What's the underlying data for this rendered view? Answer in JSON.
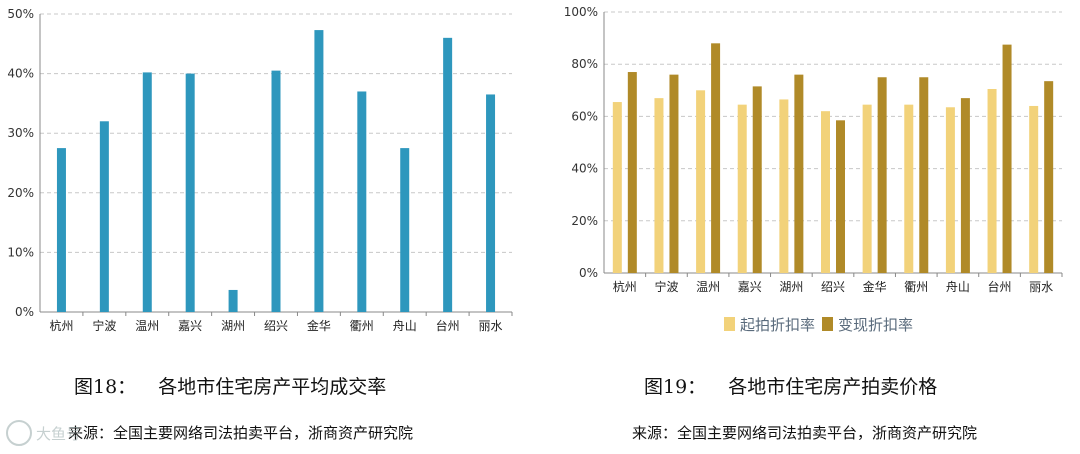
{
  "chart_data": [
    {
      "type": "bar",
      "categories": [
        "杭州",
        "宁波",
        "温州",
        "嘉兴",
        "湖州",
        "绍兴",
        "金华",
        "衢州",
        "舟山",
        "台州",
        "丽水"
      ],
      "series": [
        {
          "values": [
            27.5,
            32.0,
            40.2,
            40.0,
            3.7,
            40.5,
            47.3,
            37.0,
            27.5,
            46.0,
            36.5
          ]
        }
      ],
      "yticks": [
        "0%",
        "10%",
        "20%",
        "30%",
        "40%",
        "50%"
      ],
      "ylim": [
        0,
        50
      ],
      "grid": true,
      "colors": {
        "bar": "#2e97bd",
        "grid": "#c8c8c8"
      }
    },
    {
      "type": "bar",
      "categories": [
        "杭州",
        "宁波",
        "温州",
        "嘉兴",
        "湖州",
        "绍兴",
        "金华",
        "衢州",
        "舟山",
        "台州",
        "丽水"
      ],
      "series": [
        {
          "name": "起拍折扣率",
          "values": [
            65.5,
            67.0,
            70.0,
            64.5,
            66.5,
            62.0,
            64.5,
            64.5,
            63.5,
            70.5,
            64.0
          ]
        },
        {
          "name": "变现折扣率",
          "values": [
            77.0,
            76.0,
            88.0,
            71.5,
            76.0,
            58.5,
            75.0,
            75.0,
            67.0,
            87.5,
            73.5
          ]
        }
      ],
      "yticks": [
        "0%",
        "20%",
        "40%",
        "60%",
        "80%",
        "100%"
      ],
      "ylim": [
        0,
        100
      ],
      "grid": true,
      "legend": "bottom",
      "colors": {
        "series1": "#f2d27a",
        "series2": "#b08a28",
        "grid": "#c8c8c8"
      }
    }
  ],
  "captions": {
    "left_num": "图18：",
    "left_title": "各地市住宅房产平均成交率",
    "right_num": "图19：",
    "right_title": "各地市住宅房产拍卖价格",
    "source": "来源：全国主要网络司法拍卖平台，浙商资产研究院"
  },
  "watermark": {
    "text": "大鱼号"
  }
}
